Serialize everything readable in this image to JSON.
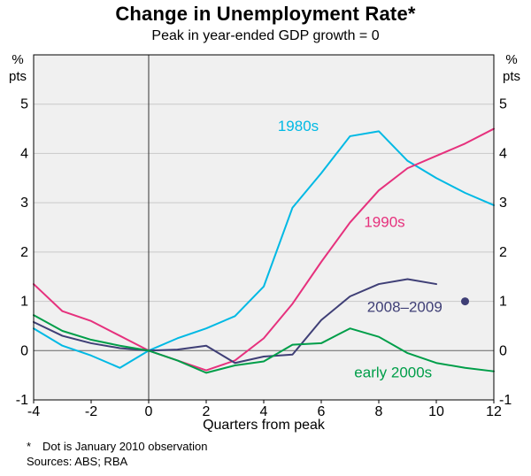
{
  "title": "Change in Unemployment Rate*",
  "subtitle": "Peak in year-ended GDP growth = 0",
  "y_axis_unit": {
    "line1": "%",
    "line2": "pts"
  },
  "footnote": {
    "marker": "*",
    "text": "Dot is January 2010 observation"
  },
  "sources": "Sources: ABS; RBA",
  "chart_data": {
    "type": "line",
    "title": "Change in Unemployment Rate*",
    "subtitle": "Peak in year-ended GDP growth = 0",
    "xlabel": "Quarters from peak",
    "ylabel": "% pts",
    "xlim": [
      -4,
      12
    ],
    "ylim": [
      -1,
      5
    ],
    "x_ticks": [
      -4,
      -2,
      0,
      2,
      4,
      6,
      8,
      10,
      12
    ],
    "y_ticks": [
      -1,
      0,
      1,
      2,
      3,
      4,
      5
    ],
    "grid": "horizontal",
    "legend_position": "inline-labels",
    "colors": {
      "plot_bg": "#f0f0f0",
      "grid": "#c9c9c9",
      "zero_line": "#666666",
      "peak_line": "#333333",
      "axis": "#000000"
    },
    "x": [
      -4,
      -3,
      -2,
      -1,
      0,
      1,
      2,
      3,
      4,
      5,
      6,
      7,
      8,
      9,
      10,
      11,
      12
    ],
    "series": [
      {
        "name": "1980s",
        "color": "#00b9e4",
        "values": [
          0.45,
          0.1,
          -0.1,
          -0.35,
          0,
          0.25,
          0.45,
          0.7,
          1.3,
          2.9,
          3.6,
          4.35,
          4.45,
          3.85,
          3.5,
          3.2,
          2.95
        ]
      },
      {
        "name": "1990s",
        "color": "#e6317d",
        "values": [
          1.35,
          0.8,
          0.6,
          0.3,
          0,
          -0.2,
          -0.4,
          -0.2,
          0.25,
          0.95,
          1.8,
          2.6,
          3.25,
          3.7,
          3.95,
          4.2,
          4.5
        ]
      },
      {
        "name": "2008–2009",
        "color": "#3f3f76",
        "values": [
          0.58,
          0.3,
          0.15,
          0.05,
          0,
          0.02,
          0.1,
          -0.25,
          -0.12,
          -0.08,
          0.62,
          1.1,
          1.35,
          1.45,
          1.35
        ]
      },
      {
        "name": "early 2000s",
        "color": "#009e49",
        "values": [
          0.72,
          0.4,
          0.22,
          0.1,
          0,
          -0.2,
          -0.45,
          -0.3,
          -0.22,
          0.12,
          0.15,
          0.45,
          0.28,
          -0.05,
          -0.25,
          -0.35,
          -0.42
        ]
      }
    ],
    "series_labels": [
      {
        "text": "1980s",
        "x": 5.2,
        "y": 4.55,
        "color": "#00b9e4"
      },
      {
        "text": "1990s",
        "x": 8.2,
        "y": 2.6,
        "color": "#e6317d"
      },
      {
        "text": "2008–2009",
        "x": 8.9,
        "y": 0.88,
        "color": "#3f3f76"
      },
      {
        "text": "early 2000s",
        "x": 8.5,
        "y": -0.45,
        "color": "#009e49"
      }
    ],
    "annotations": {
      "dot": {
        "x": 11,
        "y": 1.0,
        "color": "#3f3f76",
        "note": "January 2010 observation"
      }
    }
  }
}
